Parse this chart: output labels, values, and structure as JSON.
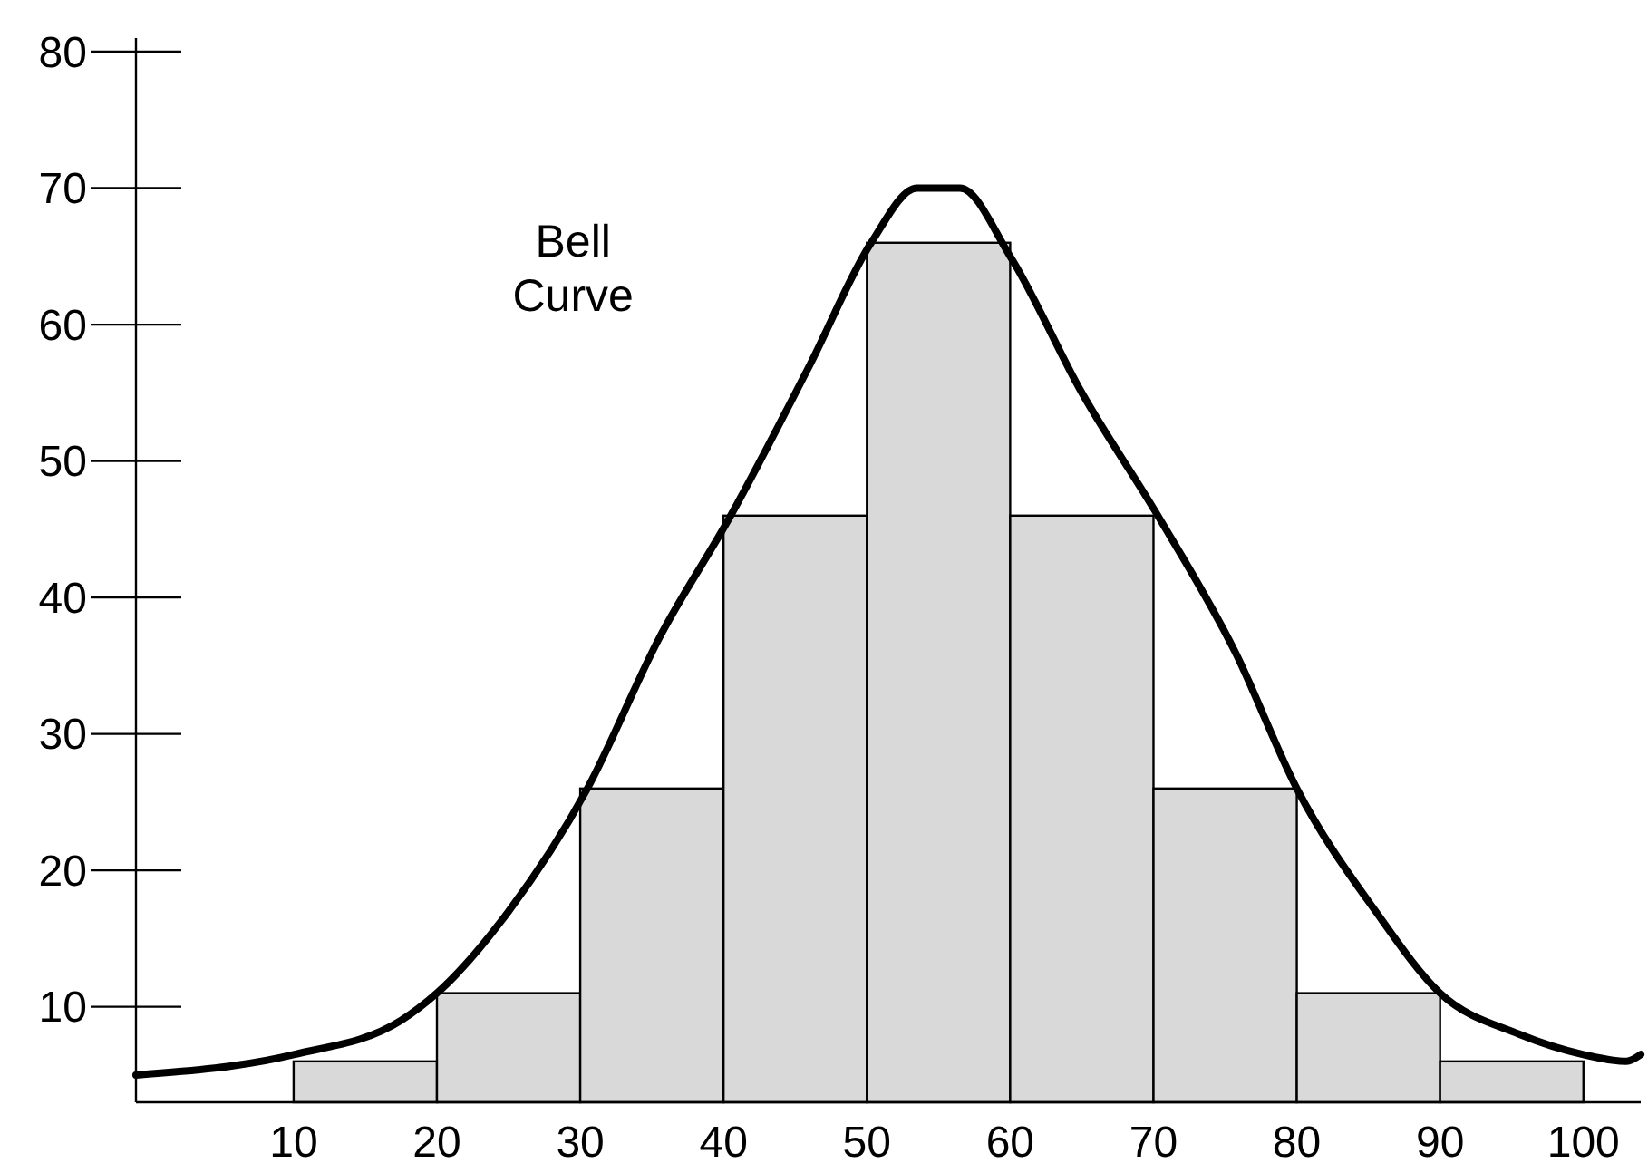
{
  "chart_data": {
    "type": "histogram",
    "bins": [
      10,
      20,
      30,
      40,
      50,
      60,
      70,
      80,
      90,
      100
    ],
    "values": [
      6,
      11,
      26,
      46,
      66,
      46,
      26,
      11,
      6
    ],
    "color": "#d9d9d9",
    "xlim": [
      -1,
      104
    ],
    "xticks": [
      10,
      20,
      30,
      40,
      50,
      60,
      70,
      80,
      90,
      100
    ],
    "ylim": [
      3,
      81
    ],
    "yticks": [
      10,
      20,
      30,
      40,
      50,
      60,
      70,
      80
    ],
    "grid": false,
    "series": [
      {
        "type": "line",
        "name": "Bell Curve",
        "color": "#000000",
        "x": [
          -1,
          10,
          17.5,
          20,
          25,
          30.5,
          35.5,
          40.5,
          46,
          50.3,
          53.5,
          56.5,
          60,
          65,
          70.3,
          75.7,
          80,
          85.5,
          90,
          95.5,
          100,
          103,
          104
        ],
        "values": [
          5,
          6.5,
          9,
          11,
          17,
          26,
          37,
          46,
          57,
          66,
          70,
          70,
          65,
          55,
          46,
          36,
          26,
          17,
          11,
          8,
          6.5,
          6,
          6.5
        ]
      }
    ]
  }
}
